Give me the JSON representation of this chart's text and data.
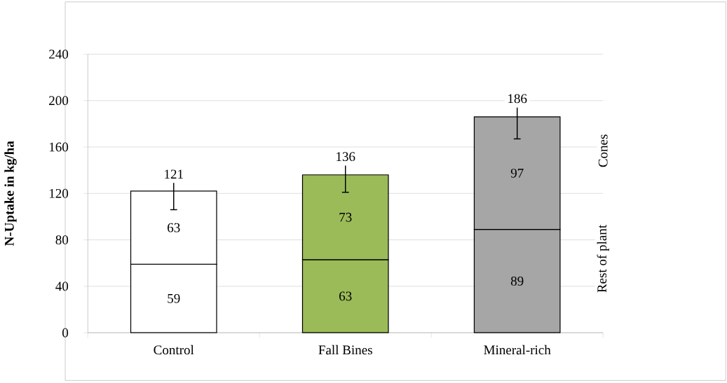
{
  "chart_data": {
    "type": "bar",
    "stacked": true,
    "ylabel": "N-Uptake in kg/ha",
    "categories": [
      "Control",
      "Fall Bines",
      "Mineral-rich"
    ],
    "series": [
      {
        "name": "Rest of plant",
        "colors": [
          "#ffffff",
          "#9bbb59",
          "#a6a6a6"
        ],
        "values": [
          59,
          63,
          89
        ]
      },
      {
        "name": "Cones",
        "colors": [
          "#ffffff",
          "#9bbb59",
          "#a6a6a6"
        ],
        "values": [
          63,
          73,
          97
        ],
        "errors": [
          [
            106,
            129
          ],
          [
            121,
            144
          ],
          [
            167,
            194
          ]
        ]
      }
    ],
    "totals": [
      "121",
      "136",
      "186"
    ],
    "data_labels": true,
    "ylim": [
      0,
      240
    ],
    "yticks": [
      0,
      40,
      80,
      120,
      160,
      200,
      240
    ],
    "grid": "y",
    "legend": "right"
  }
}
